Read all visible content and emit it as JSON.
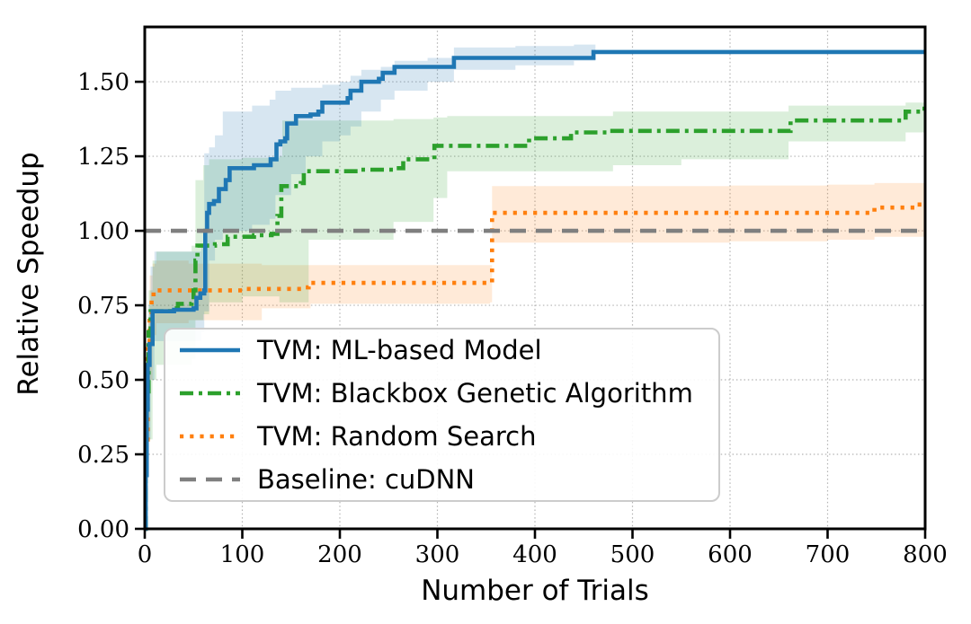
{
  "figure": {
    "background": "#ffffff",
    "spine_color": "#000000",
    "grid_color": "#b3b3b3",
    "tick_label_color": "#000000"
  },
  "chart_data": {
    "type": "line",
    "title": "",
    "xlabel": "Number of Trials",
    "ylabel": "Relative Speedup",
    "xlim": [
      0,
      800
    ],
    "ylim": [
      0,
      1.684
    ],
    "grid": true,
    "legend_position": "lower left",
    "xticks": {
      "values": [
        0,
        100,
        200,
        300,
        400,
        500,
        600,
        700,
        800
      ],
      "labels": [
        "0",
        "100",
        "200",
        "300",
        "400",
        "500",
        "600",
        "700",
        "800"
      ]
    },
    "yticks": {
      "values": [
        0.0,
        0.25,
        0.5,
        0.75,
        1.0,
        1.25,
        1.5
      ],
      "labels": [
        "0.00",
        "0.25",
        "0.50",
        "0.75",
        "1.00",
        "1.25",
        "1.50"
      ]
    },
    "series": [
      {
        "id": "tvm-random-search",
        "name": "TVM: Random Search",
        "color": "#ff7f0e",
        "band_color": "#ff7f0e",
        "band_opacity": 0.16,
        "style": "dotted",
        "points": [
          [
            0,
            0
          ],
          [
            1,
            0.3
          ],
          [
            3,
            0.62
          ],
          [
            5,
            0.72
          ],
          [
            7,
            0.78
          ],
          [
            9,
            0.8
          ],
          [
            100,
            0.805
          ],
          [
            165,
            0.81
          ],
          [
            168,
            0.825
          ],
          [
            356,
            1.06
          ],
          [
            748,
            1.078
          ],
          [
            792,
            1.088
          ],
          [
            800,
            1.088
          ]
        ],
        "band": [
          [
            3,
            0.3,
            0.7
          ],
          [
            5,
            0.5,
            0.85
          ],
          [
            8,
            0.65,
            0.89
          ],
          [
            12,
            0.69,
            0.9
          ],
          [
            45,
            0.7,
            0.89
          ],
          [
            120,
            0.74,
            0.885
          ],
          [
            170,
            0.755,
            0.885
          ],
          [
            354,
            0.76,
            0.885
          ],
          [
            356,
            0.96,
            1.15
          ],
          [
            600,
            0.965,
            1.152
          ],
          [
            700,
            0.97,
            1.155
          ],
          [
            748,
            0.98,
            1.16
          ],
          [
            800,
            0.985,
            1.165
          ]
        ]
      },
      {
        "id": "tvm-blackbox-ga",
        "name": "TVM: Blackbox Genetic Algorithm",
        "color": "#2ca02c",
        "band_color": "#2ca02c",
        "band_opacity": 0.17,
        "style": "dashdot",
        "points": [
          [
            0,
            0
          ],
          [
            1,
            0.2
          ],
          [
            2,
            0.45
          ],
          [
            4,
            0.66
          ],
          [
            6,
            0.73
          ],
          [
            26,
            0.74
          ],
          [
            34,
            0.755
          ],
          [
            48,
            0.76
          ],
          [
            50,
            0.8
          ],
          [
            52,
            0.9
          ],
          [
            54,
            0.95
          ],
          [
            72,
            0.955
          ],
          [
            85,
            0.98
          ],
          [
            112,
            0.985
          ],
          [
            130,
            0.99
          ],
          [
            136,
            1.05
          ],
          [
            140,
            1.15
          ],
          [
            160,
            1.16
          ],
          [
            163,
            1.2
          ],
          [
            222,
            1.205
          ],
          [
            258,
            1.21
          ],
          [
            265,
            1.24
          ],
          [
            297,
            1.285
          ],
          [
            394,
            1.31
          ],
          [
            437,
            1.33
          ],
          [
            477,
            1.335
          ],
          [
            662,
            1.37
          ],
          [
            780,
            1.4
          ],
          [
            796,
            1.41
          ],
          [
            800,
            1.41
          ]
        ],
        "band": [
          [
            4,
            0.3,
            0.8
          ],
          [
            8,
            0.5,
            0.9
          ],
          [
            12,
            0.55,
            0.93
          ],
          [
            48,
            0.57,
            0.95
          ],
          [
            52,
            0.7,
            1.17
          ],
          [
            60,
            0.72,
            1.22
          ],
          [
            66,
            0.76,
            1.24
          ],
          [
            100,
            0.78,
            1.245
          ],
          [
            138,
            0.76,
            1.25
          ],
          [
            141,
            0.76,
            1.37
          ],
          [
            168,
            0.97,
            1.37
          ],
          [
            255,
            1.03,
            1.375
          ],
          [
            296,
            1.11,
            1.38
          ],
          [
            310,
            1.2,
            1.385
          ],
          [
            480,
            1.22,
            1.4
          ],
          [
            550,
            1.24,
            1.4
          ],
          [
            660,
            1.3,
            1.42
          ],
          [
            700,
            1.3,
            1.42
          ],
          [
            780,
            1.33,
            1.43
          ],
          [
            800,
            1.34,
            1.45
          ]
        ]
      },
      {
        "id": "tvm-ml-model",
        "name": "TVM: ML-based Model",
        "color": "#1f77b4",
        "band_color": "#1f77b4",
        "band_opacity": 0.18,
        "style": "solid",
        "points": [
          [
            0,
            0
          ],
          [
            1,
            0.18
          ],
          [
            2,
            0.4
          ],
          [
            3,
            0.55
          ],
          [
            5,
            0.62
          ],
          [
            8,
            0.73
          ],
          [
            30,
            0.735
          ],
          [
            50,
            0.74
          ],
          [
            53,
            0.775
          ],
          [
            57,
            0.79
          ],
          [
            61,
            0.8
          ],
          [
            62,
            1.0
          ],
          [
            64,
            1.06
          ],
          [
            66,
            1.09
          ],
          [
            71,
            1.1
          ],
          [
            76,
            1.14
          ],
          [
            83,
            1.17
          ],
          [
            87,
            1.21
          ],
          [
            112,
            1.22
          ],
          [
            129,
            1.24
          ],
          [
            135,
            1.29
          ],
          [
            139,
            1.3
          ],
          [
            144,
            1.31
          ],
          [
            146,
            1.36
          ],
          [
            155,
            1.385
          ],
          [
            170,
            1.39
          ],
          [
            178,
            1.4
          ],
          [
            182,
            1.43
          ],
          [
            208,
            1.445
          ],
          [
            211,
            1.47
          ],
          [
            222,
            1.5
          ],
          [
            240,
            1.51
          ],
          [
            244,
            1.53
          ],
          [
            256,
            1.55
          ],
          [
            317,
            1.58
          ],
          [
            460,
            1.6
          ],
          [
            800,
            1.6
          ]
        ],
        "band": [
          [
            4,
            0.3,
            0.75
          ],
          [
            6,
            0.5,
            0.88
          ],
          [
            10,
            0.63,
            0.93
          ],
          [
            55,
            0.63,
            0.93
          ],
          [
            58,
            0.66,
            0.95
          ],
          [
            61,
            0.73,
            1.26
          ],
          [
            66,
            0.9,
            1.28
          ],
          [
            72,
            0.97,
            1.32
          ],
          [
            80,
            1.0,
            1.4
          ],
          [
            110,
            1.02,
            1.42
          ],
          [
            128,
            1.04,
            1.44
          ],
          [
            134,
            1.12,
            1.47
          ],
          [
            150,
            1.19,
            1.48
          ],
          [
            165,
            1.25,
            1.48
          ],
          [
            182,
            1.3,
            1.49
          ],
          [
            200,
            1.32,
            1.5
          ],
          [
            211,
            1.35,
            1.52
          ],
          [
            222,
            1.4,
            1.54
          ],
          [
            242,
            1.44,
            1.55
          ],
          [
            256,
            1.47,
            1.57
          ],
          [
            290,
            1.5,
            1.58
          ],
          [
            317,
            1.54,
            1.615
          ],
          [
            380,
            1.555,
            1.62
          ],
          [
            440,
            1.57,
            1.625
          ],
          [
            462,
            1.59,
            1.61
          ]
        ]
      },
      {
        "id": "baseline-cudnn",
        "name": "Baseline: cuDNN",
        "color": "#7f7f7f",
        "band_opacity": 0,
        "style": "dashed",
        "points": [
          [
            0,
            1.0
          ],
          [
            800,
            1.0
          ]
        ],
        "band": []
      }
    ],
    "legend_entries": [
      "TVM: ML-based Model",
      "TVM: Blackbox Genetic Algorithm",
      "TVM: Random Search",
      "Baseline: cuDNN"
    ]
  }
}
